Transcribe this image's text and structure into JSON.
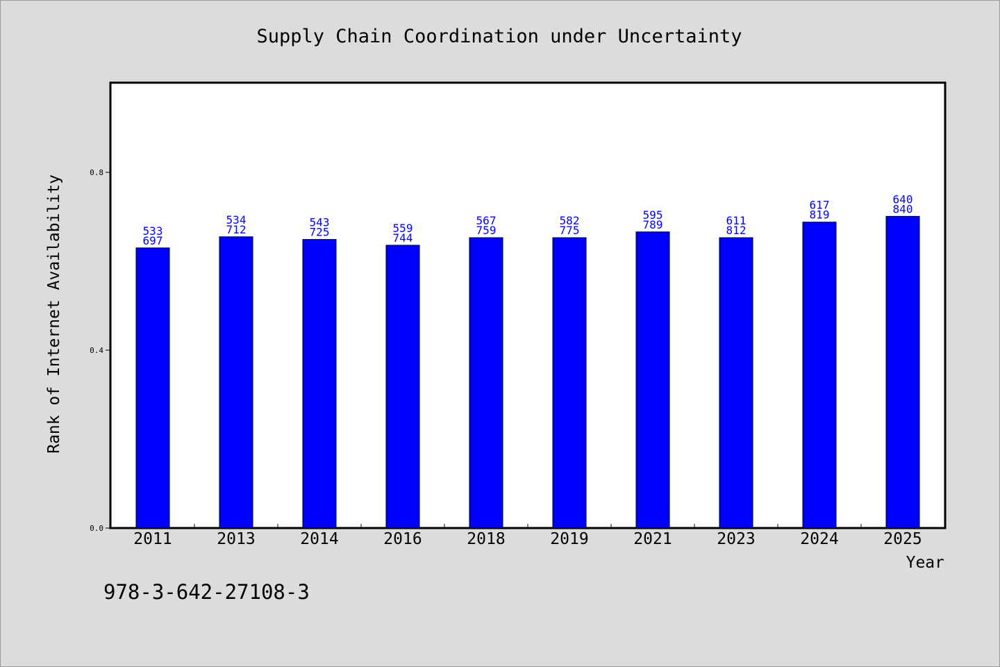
{
  "chart_data": {
    "type": "bar",
    "title": "Supply Chain Coordination under Uncertainty",
    "xlabel": "Year",
    "ylabel": "Rank of Internet Availability",
    "categories": [
      "2011",
      "2013",
      "2014",
      "2016",
      "2018",
      "2019",
      "2021",
      "2023",
      "2024",
      "2025"
    ],
    "values": [
      0.63,
      0.655,
      0.649,
      0.636,
      0.653,
      0.653,
      0.666,
      0.653,
      0.688,
      0.701
    ],
    "annotations_top": [
      "533",
      "534",
      "543",
      "559",
      "567",
      "582",
      "595",
      "611",
      "617",
      "640"
    ],
    "annotations_bottom": [
      "697",
      "712",
      "725",
      "744",
      "759",
      "775",
      "789",
      "812",
      "819",
      "840"
    ],
    "ylim": [
      0.0,
      1.0
    ],
    "yticks": [
      "0.0",
      "0.4",
      "0.8"
    ],
    "grid": false,
    "bar_color": "#0000ff",
    "label_color": "#0000ff"
  },
  "footer": {
    "isbn": "978-3-642-27108-3"
  }
}
